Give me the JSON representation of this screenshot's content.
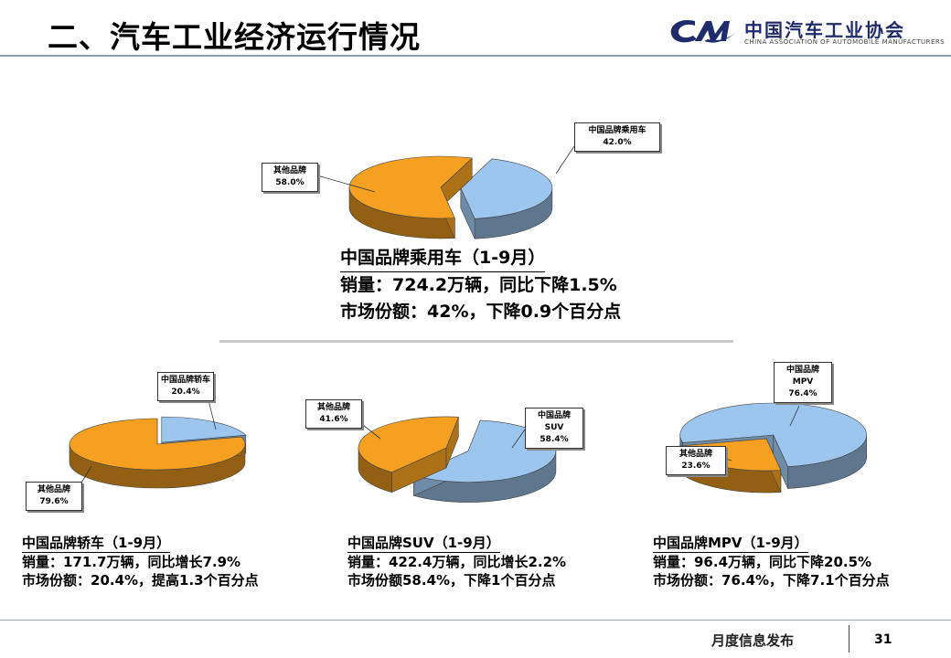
{
  "header": {
    "title": "二、汽车工业经济运行情况",
    "logo_cn": "中国汽车工业协会",
    "logo_en": "CHINA ASSOCIATION OF AUTOMOBILE MANUFACTURERS"
  },
  "chart_data": [
    {
      "type": "pie",
      "categories": [
        "中国品牌乘用车",
        "其他品牌"
      ],
      "values": [
        42.0,
        58.0
      ],
      "value_labels": [
        "42.0%",
        "58.0%"
      ],
      "colors": [
        "#9dc6ee",
        "#f5a020"
      ],
      "stats": [
        "中国品牌乘用车（1-9月）",
        "销量：724.2万辆，同比下降1.5%",
        "市场份额：42%，下降0.9个百分点"
      ]
    },
    {
      "type": "pie",
      "categories": [
        "中国品牌轿车",
        "其他品牌"
      ],
      "values": [
        20.4,
        79.6
      ],
      "value_labels": [
        "20.4%",
        "79.6%"
      ],
      "colors": [
        "#9dc6ee",
        "#f5a020"
      ],
      "stats": [
        "中国品牌轿车（1-9月）",
        "销量：171.7万辆，同比增长7.9%",
        "市场份额：20.4%，提高1.3个百分点"
      ]
    },
    {
      "type": "pie",
      "categories": [
        "中国品牌SUV",
        "其他品牌"
      ],
      "values": [
        58.4,
        41.6
      ],
      "value_labels": [
        "58.4%",
        "41.6%"
      ],
      "colors": [
        "#9dc6ee",
        "#f5a020"
      ],
      "stats": [
        "中国品牌SUV（1-9月）",
        "销量：422.4万辆，同比增长2.2%",
        "市场份额58.4%，下降1个百分点"
      ]
    },
    {
      "type": "pie",
      "categories": [
        "中国品牌MPV",
        "其他品牌"
      ],
      "values": [
        76.4,
        23.6
      ],
      "value_labels": [
        "76.4%",
        "23.6%"
      ],
      "colors": [
        "#9dc6ee",
        "#f5a020"
      ],
      "stats": [
        "中国品牌MPV（1-9月）",
        "销量：96.4万辆，同比下降20.5%",
        "市场份额：76.4%，下降7.1个百分点"
      ]
    }
  ],
  "footer": {
    "label": "月度信息发布",
    "page": "31"
  }
}
